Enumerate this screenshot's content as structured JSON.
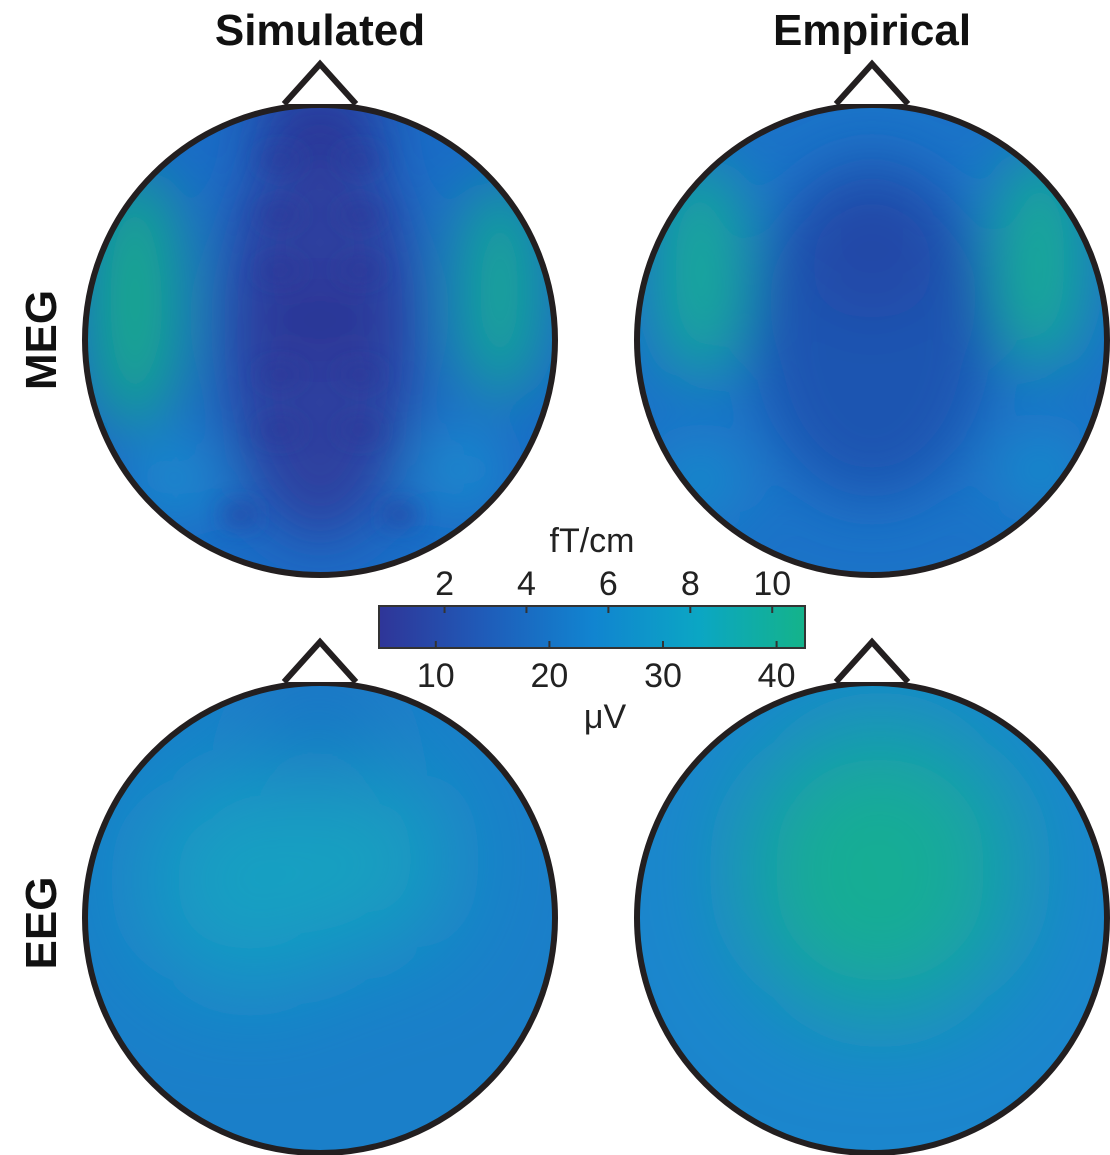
{
  "chart_data": {
    "type": "heatmap",
    "columns": [
      "Simulated",
      "Empirical"
    ],
    "rows": [
      "MEG",
      "EEG"
    ],
    "colormap": [
      "#2f3598",
      "#1f5cb9",
      "#1184d0",
      "#0ba6c4",
      "#14b38a"
    ],
    "colorbar": {
      "top_unit": "fT/cm",
      "top_ticks": [
        "2",
        "4",
        "6",
        "8",
        "10"
      ],
      "top_range": [
        0.4,
        10.8
      ],
      "bottom_unit": "μV",
      "bottom_ticks": [
        "10",
        "20",
        "30",
        "40"
      ],
      "bottom_range": [
        5,
        42.5
      ]
    }
  }
}
